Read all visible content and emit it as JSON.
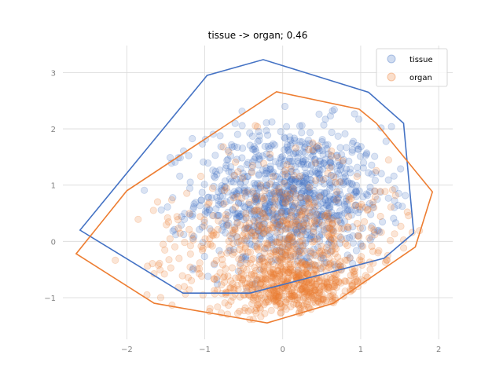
{
  "chart_data": {
    "type": "scatter",
    "title": "tissue -> organ; 0.46",
    "xlabel": "",
    "ylabel": "",
    "xlim": [
      -2.82,
      2.18
    ],
    "ylim": [
      -1.74,
      3.48
    ],
    "xticks": [
      -2,
      -1,
      0,
      1,
      2
    ],
    "yticks": [
      -1,
      0,
      1,
      2,
      3
    ],
    "grid": true,
    "legend_position": "top-right",
    "series": [
      {
        "name": "tissue",
        "color": "#4472c4",
        "marker": "circle",
        "alpha": 0.2,
        "approx_points": 1000,
        "distribution": {
          "center": [
            0.1,
            0.75
          ],
          "std": [
            0.6,
            0.65
          ],
          "x_range": [
            -2.6,
            1.7
          ],
          "y_range": [
            -0.92,
            3.23
          ]
        },
        "hull": [
          [
            -2.6,
            0.2
          ],
          [
            -1.28,
            -0.92
          ],
          [
            -0.42,
            -0.92
          ],
          [
            1.3,
            -0.3
          ],
          [
            1.68,
            0.15
          ],
          [
            1.55,
            2.1
          ],
          [
            1.1,
            2.65
          ],
          [
            -0.25,
            3.23
          ],
          [
            -0.97,
            2.95
          ]
        ]
      },
      {
        "name": "organ",
        "color": "#ed7d31",
        "marker": "circle",
        "alpha": 0.2,
        "approx_points": 1000,
        "distribution": {
          "center": [
            0.05,
            -0.1
          ],
          "std": [
            0.7,
            0.75
          ],
          "x_range": [
            -2.65,
            1.92
          ],
          "y_range": [
            -1.47,
            2.66
          ]
        },
        "hull": [
          [
            -2.65,
            -0.22
          ],
          [
            -1.65,
            -1.1
          ],
          [
            -0.2,
            -1.45
          ],
          [
            0.65,
            -1.1
          ],
          [
            1.7,
            -0.1
          ],
          [
            1.92,
            0.88
          ],
          [
            1.2,
            2.1
          ],
          [
            0.98,
            2.35
          ],
          [
            -0.08,
            2.66
          ],
          [
            -2.0,
            0.9
          ]
        ]
      }
    ]
  }
}
